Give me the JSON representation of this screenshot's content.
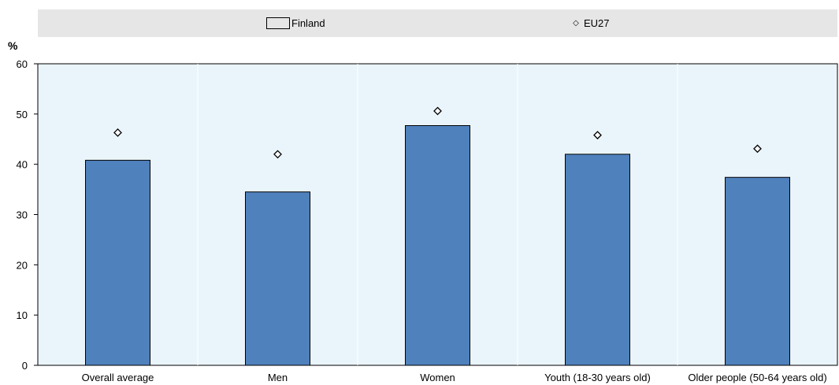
{
  "chart_data": {
    "type": "bar",
    "categories": [
      "Overall average",
      "Men",
      "Women",
      "Youth (18-30 years old)",
      "Older people (50-64 years old)"
    ],
    "series": [
      {
        "name": "Finland",
        "kind": "bar",
        "values": [
          40.8,
          34.5,
          47.7,
          42.0,
          37.4
        ],
        "color": "#4f81bd"
      },
      {
        "name": "EU27",
        "kind": "marker",
        "marker": "diamond",
        "values": [
          46.3,
          42.0,
          50.6,
          45.8,
          43.1
        ]
      }
    ],
    "ylabel": "%",
    "ylim": [
      0,
      60
    ],
    "yticks": [
      0,
      10,
      20,
      30,
      40,
      50,
      60
    ],
    "grid": false,
    "legend_position": "top",
    "plot_background": "#eaf5fb"
  }
}
